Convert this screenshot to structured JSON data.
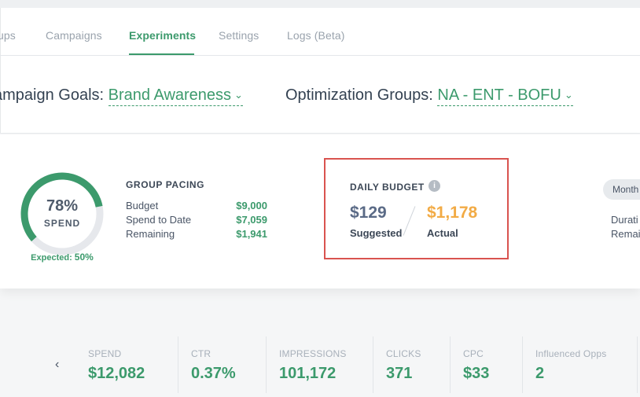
{
  "tabs": [
    {
      "label": "ups"
    },
    {
      "label": "Campaigns"
    },
    {
      "label": "Experiments"
    },
    {
      "label": "Settings"
    },
    {
      "label": "Logs (Beta)"
    }
  ],
  "active_tab": "Experiments",
  "filters": {
    "campaign_goals": {
      "label": "ampaign Goals:",
      "value": "Brand Awareness"
    },
    "optimization_groups": {
      "label": "Optimization Groups:",
      "value": "NA - ENT - BOFU"
    }
  },
  "gauge": {
    "percent": "78%",
    "sub": "SPEND",
    "expected_label": "Expected:",
    "expected_value": "50%",
    "fraction": 0.78
  },
  "pacing": {
    "title": "GROUP PACING",
    "rows": [
      {
        "label": "Budget",
        "amount": "$9,000"
      },
      {
        "label": "Spend to Date",
        "amount": "$7,059"
      },
      {
        "label": "Remaining",
        "amount": "$1,941"
      }
    ]
  },
  "daily_budget": {
    "title": "DAILY BUDGET",
    "info_icon": "info-icon",
    "suggested_value": "$129",
    "suggested_label": "Suggested",
    "actual_value": "$1,178",
    "actual_label": "Actual"
  },
  "side": {
    "pill": "Month",
    "duration": "Durati",
    "remaining": "Remai"
  },
  "metrics": [
    {
      "label": "SPEND",
      "value": "$12,082"
    },
    {
      "label": "CTR",
      "value": "0.37%"
    },
    {
      "label": "IMPRESSIONS",
      "value": "101,172"
    },
    {
      "label": "CLICKS",
      "value": "371"
    },
    {
      "label": "CPC",
      "value": "$33"
    },
    {
      "label": "Influenced Opps",
      "value": "2"
    }
  ],
  "colors": {
    "accent": "#3c9a6c",
    "actual": "#f2ab45",
    "highlight": "#d9534f",
    "gauge_track": "#e6e8ec"
  }
}
